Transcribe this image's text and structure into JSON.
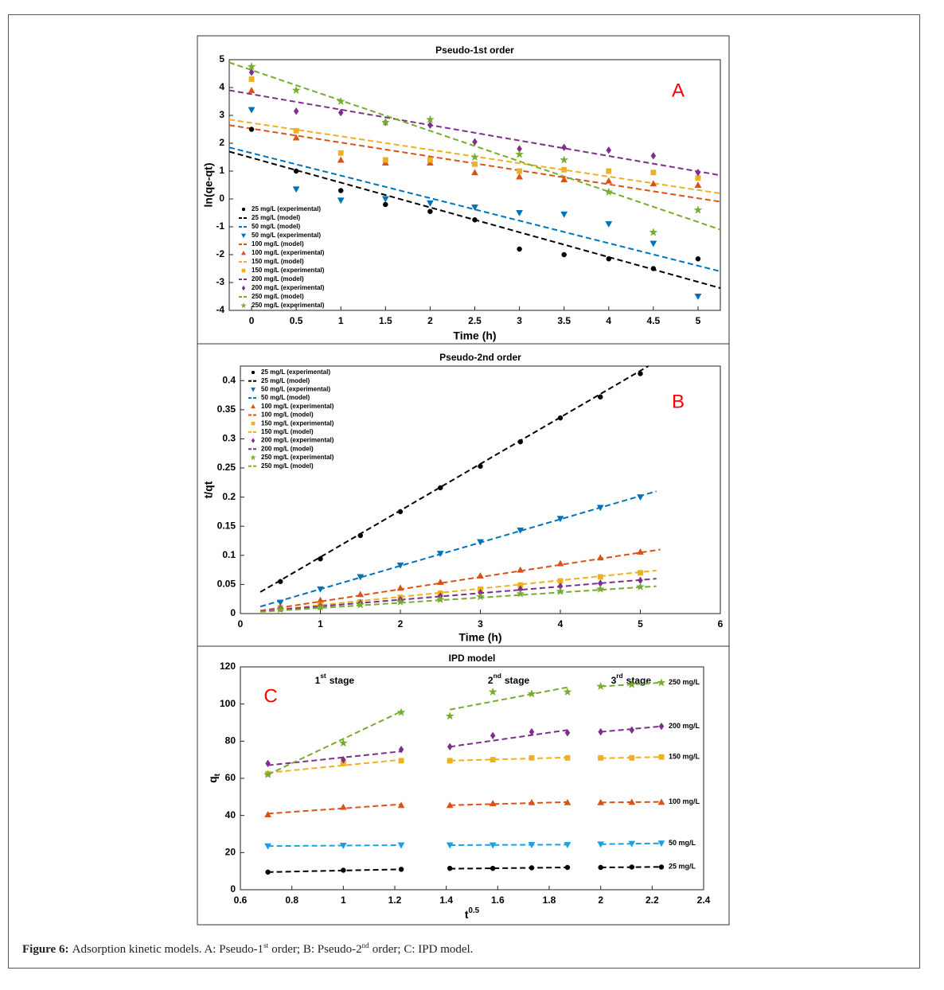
{
  "chart_data": [
    {
      "type": "scatter-line",
      "panel": "A",
      "title": "Pseudo-1st order",
      "xlabel": "Time (h)",
      "ylabel": "ln(qe-qt)",
      "x": [
        0,
        0.5,
        1,
        1.5,
        2,
        2.5,
        3,
        3.5,
        4,
        4.5,
        5
      ],
      "xlim": [
        -0.25,
        5.25
      ],
      "ylim": [
        -4,
        5
      ],
      "xticks": [
        0,
        0.5,
        1,
        1.5,
        2,
        2.5,
        3,
        3.5,
        4,
        4.5,
        5
      ],
      "yticks": [
        -4,
        -3,
        -2,
        -1,
        0,
        1,
        2,
        3,
        4,
        5
      ],
      "legend": "lower left",
      "series": [
        {
          "name": "25 mg/L (experimental)",
          "color": "#000000",
          "marker": "circle",
          "values": [
            2.5,
            1.0,
            0.3,
            -0.2,
            -0.45,
            -0.75,
            -1.8,
            -2.0,
            -2.15,
            -2.5,
            -2.15
          ]
        },
        {
          "name": "25 mg/L (model)",
          "color": "#000000",
          "linestyle": "dashed",
          "x": [
            -0.25,
            5.25
          ],
          "values": [
            1.7,
            -3.2
          ]
        },
        {
          "name": "50 mg/L (model)",
          "color": "#0072bd",
          "linestyle": "dashed",
          "x": [
            -0.25,
            5.25
          ],
          "values": [
            1.85,
            -2.6
          ]
        },
        {
          "name": "50 mg/L (experimental)",
          "color": "#0072bd",
          "marker": "triangle-down",
          "values": [
            3.2,
            0.35,
            -0.05,
            0.0,
            -0.15,
            -0.3,
            -0.5,
            -0.55,
            -0.9,
            -1.6,
            -3.5
          ]
        },
        {
          "name": "100 mg/L (model)",
          "color": "#d95319",
          "linestyle": "dashed",
          "x": [
            -0.25,
            5.25
          ],
          "values": [
            2.65,
            -0.1
          ]
        },
        {
          "name": "100 mg/L (experimental)",
          "color": "#d95319",
          "marker": "triangle-up",
          "values": [
            3.9,
            2.2,
            1.4,
            1.3,
            1.3,
            0.95,
            0.8,
            0.7,
            0.65,
            0.55,
            0.5
          ]
        },
        {
          "name": "150 mg/L (model)",
          "color": "#edb120",
          "linestyle": "dashed",
          "x": [
            -0.25,
            5.25
          ],
          "values": [
            2.85,
            0.2
          ]
        },
        {
          "name": "150 mg/L (experimental)",
          "color": "#edb120",
          "marker": "square",
          "values": [
            4.3,
            2.45,
            1.65,
            1.4,
            1.4,
            1.25,
            1.0,
            1.05,
            1.0,
            0.95,
            0.75
          ]
        },
        {
          "name": "200 mg/L (model)",
          "color": "#7e2f8e",
          "linestyle": "dashed",
          "x": [
            -0.25,
            5.25
          ],
          "values": [
            3.9,
            0.85
          ]
        },
        {
          "name": "200 mg/L (experimental)",
          "color": "#7e2f8e",
          "marker": "diamond",
          "values": [
            4.55,
            3.15,
            3.1,
            2.75,
            2.65,
            2.05,
            1.8,
            1.85,
            1.75,
            1.55,
            0.95
          ]
        },
        {
          "name": "250 mg/L (model)",
          "color": "#77ac30",
          "linestyle": "dashed",
          "x": [
            -0.25,
            5.25
          ],
          "values": [
            4.9,
            -1.1
          ]
        },
        {
          "name": "250 mg/L (experimental)",
          "color": "#77ac30",
          "marker": "star",
          "values": [
            4.75,
            3.9,
            3.5,
            2.75,
            2.85,
            1.5,
            1.6,
            1.4,
            0.25,
            -1.2,
            -0.4
          ]
        }
      ]
    },
    {
      "type": "scatter-line",
      "panel": "B",
      "title": "Pseudo-2nd order",
      "xlabel": "Time (h)",
      "ylabel": "t/qt",
      "x": [
        0.5,
        1,
        1.5,
        2,
        2.5,
        3,
        3.5,
        4,
        4.5,
        5
      ],
      "xlim": [
        0,
        6
      ],
      "ylim": [
        0,
        0.425
      ],
      "xticks": [
        0,
        1,
        2,
        3,
        4,
        5,
        6
      ],
      "yticks": [
        0,
        0.05,
        0.1,
        0.15,
        0.2,
        0.25,
        0.3,
        0.35,
        0.4
      ],
      "legend": "upper left",
      "series": [
        {
          "name": "25 mg/L (experimental)",
          "color": "#000000",
          "marker": "circle",
          "values": [
            0.055,
            0.094,
            0.134,
            0.175,
            0.216,
            0.253,
            0.295,
            0.336,
            0.372,
            0.412
          ]
        },
        {
          "name": "25 mg/L (model)",
          "color": "#000000",
          "linestyle": "dashed",
          "x": [
            0.25,
            5.1
          ],
          "values": [
            0.037,
            0.425
          ]
        },
        {
          "name": "50 mg/L (experimental)",
          "color": "#0072bd",
          "marker": "triangle-down",
          "values": [
            0.019,
            0.042,
            0.063,
            0.083,
            0.103,
            0.123,
            0.143,
            0.163,
            0.182,
            0.2
          ]
        },
        {
          "name": "50 mg/L (model)",
          "color": "#0072bd",
          "linestyle": "dashed",
          "x": [
            0.25,
            5.2
          ],
          "values": [
            0.012,
            0.21
          ]
        },
        {
          "name": "100 mg/L (experimental)",
          "color": "#d95319",
          "marker": "triangle-up",
          "values": [
            0.011,
            0.023,
            0.033,
            0.044,
            0.054,
            0.065,
            0.075,
            0.086,
            0.096,
            0.106
          ]
        },
        {
          "name": "100 mg/L (model)",
          "color": "#d95319",
          "linestyle": "dashed",
          "x": [
            0.25,
            5.25
          ],
          "values": [
            0.005,
            0.11
          ]
        },
        {
          "name": "150 mg/L (experimental)",
          "color": "#edb120",
          "marker": "square",
          "values": [
            0.01,
            0.015,
            0.02,
            0.028,
            0.035,
            0.042,
            0.049,
            0.056,
            0.063,
            0.07
          ]
        },
        {
          "name": "150 mg/L (model)",
          "color": "#edb120",
          "linestyle": "dashed",
          "x": [
            0.25,
            5.2
          ],
          "values": [
            0.004,
            0.074
          ]
        },
        {
          "name": "200 mg/L (experimental)",
          "color": "#7e2f8e",
          "marker": "diamond",
          "values": [
            0.009,
            0.013,
            0.018,
            0.024,
            0.03,
            0.036,
            0.042,
            0.047,
            0.052,
            0.057
          ]
        },
        {
          "name": "200 mg/L (model)",
          "color": "#7e2f8e",
          "linestyle": "dashed",
          "x": [
            0.25,
            5.2
          ],
          "values": [
            0.004,
            0.06
          ]
        },
        {
          "name": "250 mg/L (experimental)",
          "color": "#77ac30",
          "marker": "star",
          "values": [
            0.007,
            0.011,
            0.015,
            0.02,
            0.024,
            0.029,
            0.034,
            0.038,
            0.042,
            0.046
          ]
        },
        {
          "name": "250 mg/L (model)",
          "color": "#77ac30",
          "linestyle": "dashed",
          "x": [
            0.25,
            5.2
          ],
          "values": [
            0.003,
            0.047
          ]
        }
      ]
    },
    {
      "type": "ipd",
      "panel": "C",
      "title": "IPD model",
      "xlabel": [
        {
          "text": "t"
        },
        {
          "text": "0.5",
          "sup": true
        }
      ],
      "ylabel": [
        {
          "text": "q"
        },
        {
          "text": "t",
          "sub": true
        }
      ],
      "x": [
        0.707,
        1.0,
        1.225,
        1.414,
        1.581,
        1.732,
        1.871,
        2.0,
        2.121,
        2.236
      ],
      "xlim": [
        0.6,
        2.4
      ],
      "ylim": [
        0,
        120
      ],
      "xticks": [
        0.6,
        0.8,
        1,
        1.2,
        1.4,
        1.6,
        1.8,
        2,
        2.2,
        2.4
      ],
      "yticks": [
        0,
        20,
        40,
        60,
        80,
        100,
        120
      ],
      "stages": [
        {
          "label": [
            {
              "text": "1"
            },
            {
              "text": "st",
              "sup": true
            },
            {
              "text": "stage"
            }
          ],
          "x": [
            0.707,
            1.225
          ]
        },
        {
          "label": [
            {
              "text": "2"
            },
            {
              "text": "nd",
              "sup": true
            },
            {
              "text": "stage"
            }
          ],
          "x": [
            1.414,
            1.871
          ]
        },
        {
          "label": [
            {
              "text": "3"
            },
            {
              "text": "rd",
              "sup": true
            },
            {
              "text": "stage"
            }
          ],
          "x": [
            2.0,
            2.236
          ]
        }
      ],
      "series": [
        {
          "name": "25 mg/L",
          "color": "#000000",
          "marker": "circle",
          "values": [
            9.5,
            10.5,
            11,
            11.5,
            11.5,
            11.8,
            12,
            12,
            12.2,
            12.2
          ],
          "fits": [
            [
              9.5,
              11
            ],
            [
              11.3,
              12
            ],
            [
              12,
              12.3
            ]
          ]
        },
        {
          "name": "50 mg/L",
          "color": "#1ba1e2",
          "marker": "triangle-down",
          "values": [
            23.5,
            23.8,
            24,
            24,
            24,
            24.2,
            24.2,
            24.5,
            24.8,
            25
          ],
          "fits": [
            [
              23.5,
              24
            ],
            [
              24,
              24.3
            ],
            [
              24.5,
              25
            ]
          ]
        },
        {
          "name": "100 mg/L",
          "color": "#d95319",
          "marker": "triangle-up",
          "values": [
            40.5,
            44.5,
            45.5,
            45.5,
            46.5,
            47,
            47,
            47,
            47.2,
            47.2
          ],
          "fits": [
            [
              41,
              46
            ],
            [
              45.5,
              47.2
            ],
            [
              47,
              47.3
            ]
          ]
        },
        {
          "name": "150 mg/L",
          "color": "#edb120",
          "marker": "square",
          "values": [
            62.5,
            68,
            69.5,
            69.5,
            70,
            71,
            71,
            71,
            71,
            71.5
          ],
          "fits": [
            [
              63,
              70
            ],
            [
              69.5,
              71.2
            ],
            [
              70.8,
              71.5
            ]
          ]
        },
        {
          "name": "200 mg/L",
          "color": "#7e2f8e",
          "marker": "diamond",
          "values": [
            68,
            70,
            75.5,
            77,
            83,
            85,
            84.5,
            85,
            86,
            88
          ],
          "fits": [
            [
              67,
              74.5
            ],
            [
              77,
              86
            ],
            [
              85,
              88
            ]
          ]
        },
        {
          "name": "250 mg/L",
          "color": "#77ac30",
          "marker": "star",
          "values": [
            62,
            79,
            95.5,
            93.5,
            106.5,
            105.5,
            106.5,
            109.5,
            110.5,
            111.5
          ],
          "fits": [
            [
              62,
              96
            ],
            [
              97,
              109
            ],
            [
              109.5,
              111.5
            ]
          ]
        }
      ]
    }
  ],
  "caption": [
    {
      "text": "Figure 6:",
      "bold": true
    },
    {
      "text": "Adsorption kinetic models. A: Pseudo-1"
    },
    {
      "text": "st",
      "sup": true
    },
    {
      "text": "order; B: Pseudo-2"
    },
    {
      "text": "nd",
      "sup": true
    },
    {
      "text": "order; C: IPD model."
    }
  ]
}
